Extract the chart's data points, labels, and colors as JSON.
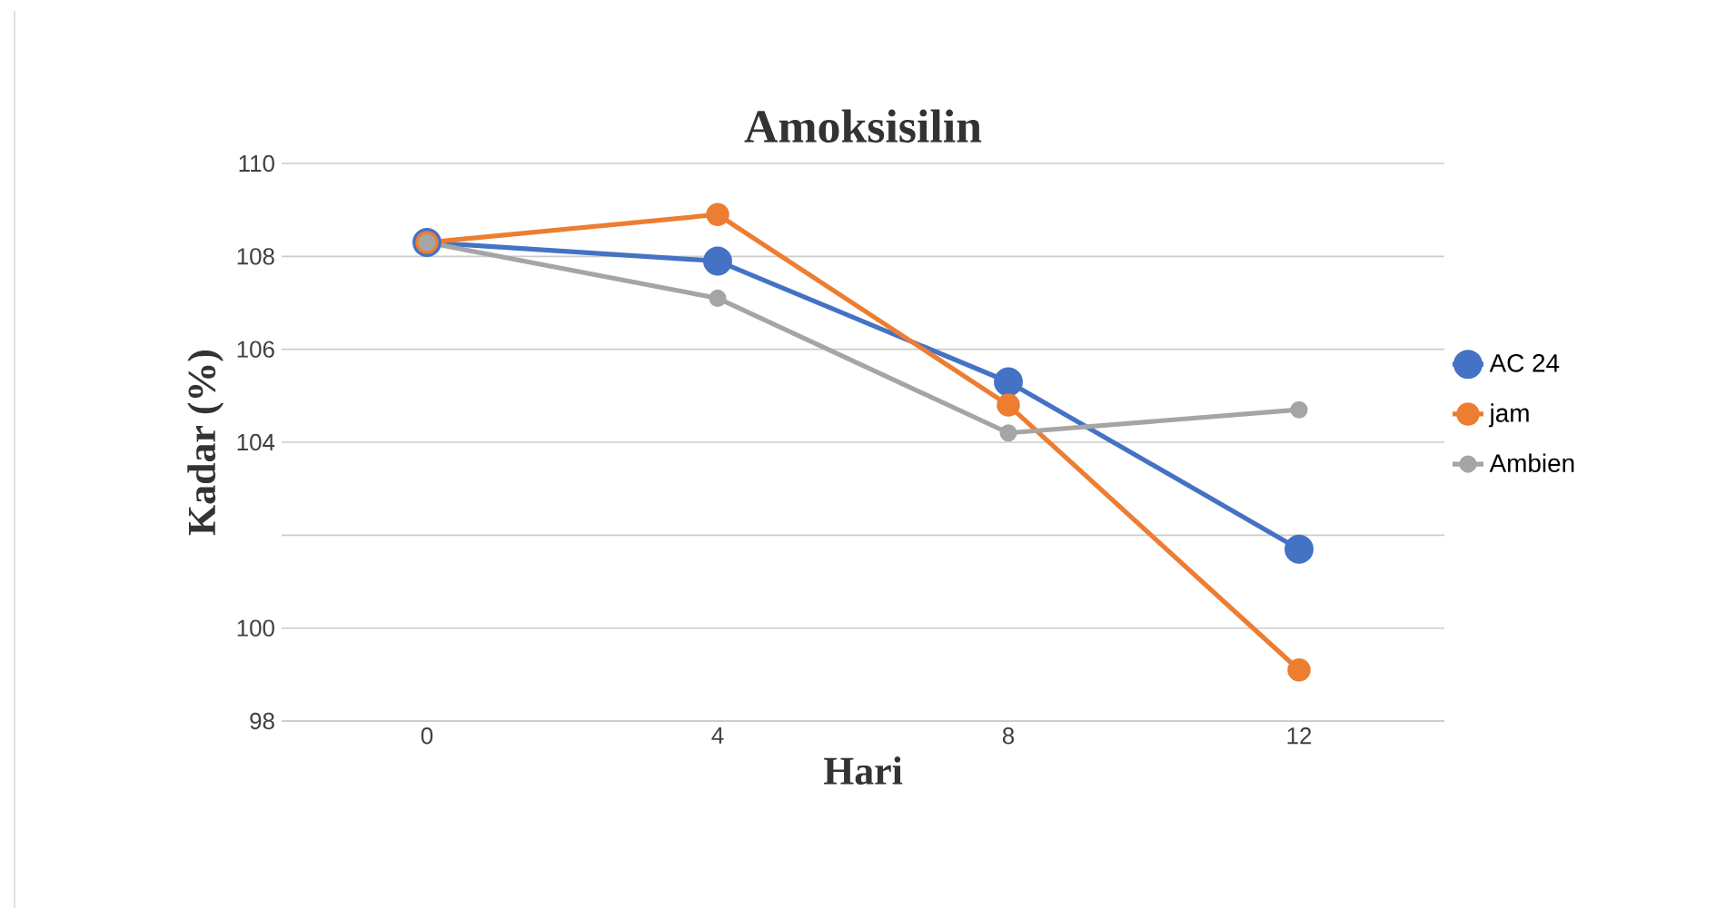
{
  "chart_data": {
    "type": "line",
    "title": "Amoksisilin",
    "xlabel": "Hari",
    "ylabel": "Kadar (%)",
    "categories": [
      "0",
      "4",
      "8",
      "12"
    ],
    "series": [
      {
        "name": "AC 24",
        "color": "#4472c4",
        "values": [
          108.3,
          107.9,
          105.3,
          101.7
        ]
      },
      {
        "name": "jam",
        "color": "#ed7d31",
        "values": [
          108.3,
          108.9,
          104.8,
          99.1
        ]
      },
      {
        "name": "Ambien",
        "color": "#a5a5a5",
        "values": [
          108.3,
          107.1,
          104.2,
          104.7
        ]
      }
    ],
    "ylim": [
      98,
      110
    ],
    "yticks": [
      {
        "value": 98,
        "label": "98"
      },
      100,
      {
        "value": 102,
        "label": null
      },
      104,
      106,
      108,
      110
    ],
    "grid": "y",
    "legend": "right",
    "marker": "circle",
    "line_style": "solid"
  }
}
